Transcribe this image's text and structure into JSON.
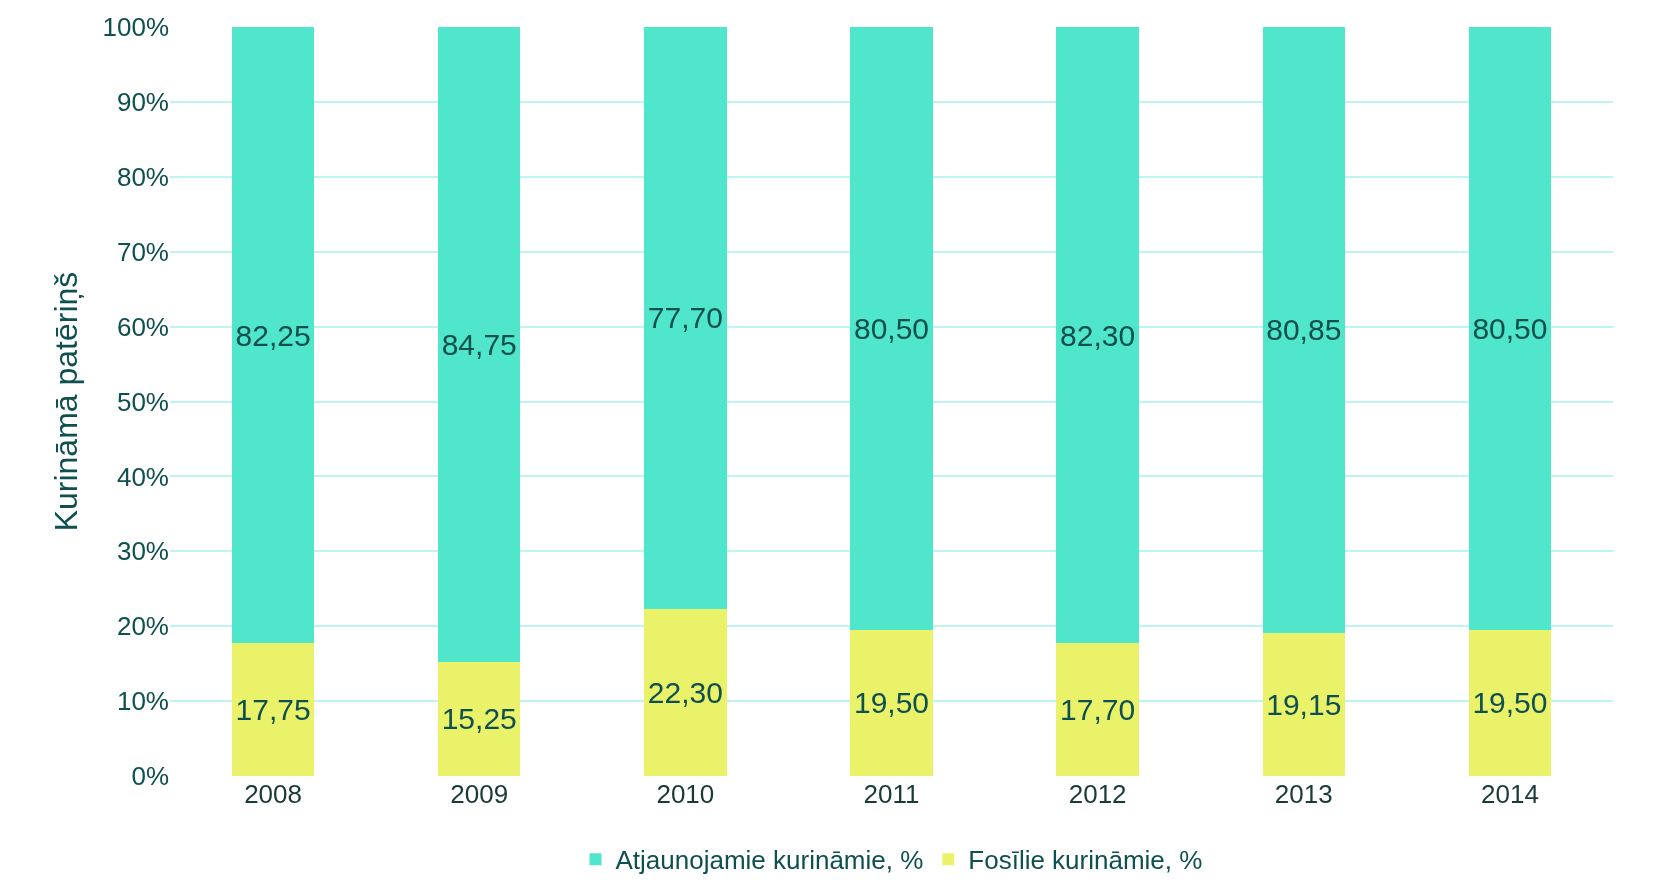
{
  "chart_data": {
    "type": "bar",
    "stacked": true,
    "categories": [
      "2008",
      "2009",
      "2010",
      "2011",
      "2012",
      "2013",
      "2014"
    ],
    "ylabel": "Kurināmā patēriņš",
    "series": [
      {
        "name": "Fosīlie kurināmie, %",
        "color": "#eaf26a",
        "values": [
          17.75,
          15.25,
          22.3,
          19.5,
          17.7,
          19.15,
          19.5
        ],
        "value_labels": [
          "17,75",
          "15,25",
          "22,30",
          "19,50",
          "17,70",
          "19,15",
          "19,50"
        ]
      },
      {
        "name": "Atjaunojamie kurināmie, %",
        "color": "#4fe6cc",
        "values": [
          82.25,
          84.75,
          77.7,
          80.5,
          82.3,
          80.85,
          80.5
        ],
        "value_labels": [
          "82,25",
          "84,75",
          "77,70",
          "80,50",
          "82,30",
          "80,85",
          "80,50"
        ]
      }
    ],
    "ylim": [
      0,
      100
    ],
    "yticks": [
      {
        "value": 0,
        "label": "0%"
      },
      {
        "value": 10,
        "label": "10%"
      },
      {
        "value": 20,
        "label": "20%"
      },
      {
        "value": 30,
        "label": "30%"
      },
      {
        "value": 40,
        "label": "40%"
      },
      {
        "value": 50,
        "label": "50%"
      },
      {
        "value": 60,
        "label": "60%"
      },
      {
        "value": 70,
        "label": "70%"
      },
      {
        "value": 80,
        "label": "80%"
      },
      {
        "value": 90,
        "label": "90%"
      },
      {
        "value": 100,
        "label": "100%"
      }
    ],
    "grid": "y",
    "legend": "bottom"
  }
}
